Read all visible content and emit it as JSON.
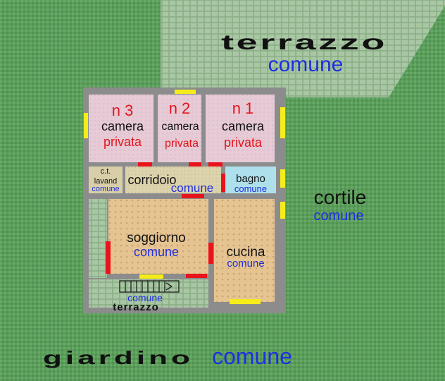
{
  "areas": {
    "terrazzo_top": {
      "title": "terrazzo",
      "subtitle": "comune"
    },
    "cortile": {
      "title": "cortile",
      "subtitle": "comune"
    },
    "giardino": {
      "title": "giardino",
      "subtitle": "comune"
    },
    "terrazzo_bottom": {
      "title": "terrazzo",
      "subtitle": "comune"
    }
  },
  "rooms": {
    "camera3": {
      "number": "n 3",
      "name": "camera",
      "status": "privata"
    },
    "camera2": {
      "number": "n 2",
      "name": "camera",
      "status": "privata"
    },
    "camera1": {
      "number": "n 1",
      "name": "camera",
      "status": "privata"
    },
    "ct_lavand": {
      "line1": "c.t.",
      "line2": "lavand",
      "status": "comune"
    },
    "corridoio": {
      "name": "corridoio",
      "status": "comune"
    },
    "bagno": {
      "name": "bagno",
      "status": "comune"
    },
    "soggiorno": {
      "name": "soggiorno",
      "status": "comune"
    },
    "cucina": {
      "name": "cucina",
      "status": "comune"
    }
  },
  "colors": {
    "garden": "#5fa25f",
    "terrace": "#9fbf9a",
    "wall": "#8c8c8c",
    "bedroom": "#e4c9d5",
    "tile": "#e9c99c",
    "bagno": "#aee0ec",
    "corridor": "#d9d0a8",
    "door": "#e8141c",
    "window": "#f5ec1a",
    "private_text": "#e4141c",
    "common_text": "#1f2ee0"
  }
}
